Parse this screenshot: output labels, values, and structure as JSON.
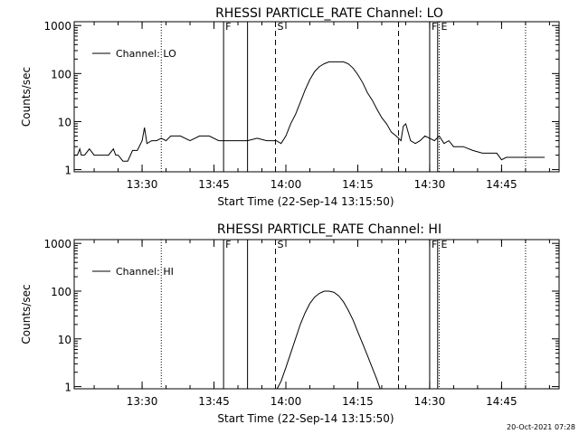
{
  "chart_data": [
    {
      "type": "line",
      "title": "RHESSI PARTICLE_RATE Channel: LO",
      "xlabel": "Start Time (22-Sep-14 13:15:50)",
      "ylabel": "Counts/sec",
      "yscale": "log",
      "ylim": [
        0.9,
        1200
      ],
      "xlim": [
        "13:15:50",
        "14:57:00"
      ],
      "xticks": [
        "13:30",
        "13:45",
        "14:00",
        "14:15",
        "14:30",
        "14:45"
      ],
      "yticks": [
        "1",
        "10",
        "100",
        "1000"
      ],
      "legend": "top-left",
      "series": [
        {
          "name": "Channel: LO",
          "x": [
            "13:15:50",
            "13:16:30",
            "13:17:00",
            "13:17:20",
            "13:18:00",
            "13:19:00",
            "13:20:00",
            "13:21:00",
            "13:22:00",
            "13:23:00",
            "13:24:00",
            "13:24:30",
            "13:25:00",
            "13:26:00",
            "13:27:00",
            "13:28:00",
            "13:29:00",
            "13:30:00",
            "13:30:30",
            "13:31:00",
            "13:32:00",
            "13:33:00",
            "13:34:00",
            "13:35:00",
            "13:36:00",
            "13:38:00",
            "13:40:00",
            "13:42:00",
            "13:44:00",
            "13:46:00",
            "13:48:00",
            "13:50:00",
            "13:52:00",
            "13:54:00",
            "13:56:00",
            "13:57:00",
            "13:58:00",
            "13:59:00",
            "14:00:00",
            "14:01:00",
            "14:02:00",
            "14:03:00",
            "14:04:00",
            "14:05:00",
            "14:06:00",
            "14:07:00",
            "14:08:00",
            "14:09:00",
            "14:10:00",
            "14:11:00",
            "14:12:00",
            "14:13:00",
            "14:14:00",
            "14:15:00",
            "14:16:00",
            "14:17:00",
            "14:18:00",
            "14:19:00",
            "14:20:00",
            "14:21:00",
            "14:22:00",
            "14:23:00",
            "14:24:00",
            "14:24:30",
            "14:25:00",
            "14:26:00",
            "14:27:00",
            "14:28:00",
            "14:29:00",
            "14:30:00",
            "14:31:00",
            "14:32:00",
            "14:33:00",
            "14:34:00",
            "14:35:00",
            "14:37:00",
            "14:39:00",
            "14:41:00",
            "14:43:00",
            "14:44:00",
            "14:45:00",
            "14:46:00",
            "14:48:00",
            "14:50:00",
            "14:52:00",
            "14:53:00",
            "14:54:00"
          ],
          "values": [
            2,
            2,
            2.7,
            2,
            2,
            2.7,
            2,
            2,
            2,
            2,
            2.7,
            2,
            2,
            1.5,
            1.5,
            2.5,
            2.5,
            4,
            7.5,
            3.5,
            4,
            4,
            4.5,
            4,
            5,
            5,
            4,
            5,
            5,
            4,
            4,
            4,
            4,
            4.5,
            4,
            4,
            4,
            3.5,
            5,
            9,
            14,
            25,
            45,
            75,
            110,
            140,
            160,
            175,
            175,
            175,
            175,
            160,
            130,
            95,
            65,
            40,
            28,
            18,
            12,
            9,
            6,
            5,
            4,
            8,
            9,
            4,
            3.5,
            4,
            5,
            4.5,
            4,
            5,
            3.5,
            4,
            3,
            3,
            2.5,
            2.2,
            2.2,
            2.2,
            1.6,
            1.8,
            1.8,
            1.8,
            1.8,
            1.8,
            1.8
          ]
        }
      ],
      "markers": [
        {
          "time": "13:34:00",
          "style": "dotted",
          "label": ""
        },
        {
          "time": "13:47:00",
          "style": "solid",
          "label": "F"
        },
        {
          "time": "13:52:00",
          "style": "solid",
          "label": ""
        },
        {
          "time": "13:57:50",
          "style": "dashed",
          "label": "S"
        },
        {
          "time": "14:23:30",
          "style": "dashed",
          "label": ""
        },
        {
          "time": "14:30:00",
          "style": "solid",
          "label": "F"
        },
        {
          "time": "14:31:40",
          "style": "solid",
          "label": ""
        },
        {
          "time": "14:32:00",
          "style": "dotted",
          "label": "E"
        },
        {
          "time": "14:50:00",
          "style": "dotted",
          "label": ""
        }
      ]
    },
    {
      "type": "line",
      "title": "RHESSI PARTICLE_RATE Channel: HI",
      "xlabel": "Start Time (22-Sep-14 13:15:50)",
      "ylabel": "Counts/sec",
      "yscale": "log",
      "ylim": [
        0.9,
        1200
      ],
      "xlim": [
        "13:15:50",
        "14:57:00"
      ],
      "xticks": [
        "13:30",
        "13:45",
        "14:00",
        "14:15",
        "14:30",
        "14:45"
      ],
      "yticks": [
        "1",
        "10",
        "100",
        "1000"
      ],
      "legend": "top-left",
      "series": [
        {
          "name": "Channel: HI",
          "x": [
            "13:58:10",
            "13:59:00",
            "14:00:00",
            "14:01:00",
            "14:02:00",
            "14:03:00",
            "14:04:00",
            "14:05:00",
            "14:06:00",
            "14:07:00",
            "14:08:00",
            "14:09:00",
            "14:10:00",
            "14:11:00",
            "14:12:00",
            "14:13:00",
            "14:14:00",
            "14:15:00",
            "14:16:00",
            "14:17:00",
            "14:18:00",
            "14:19:00",
            "14:19:40"
          ],
          "values": [
            0.9,
            1.3,
            2.5,
            5,
            10,
            20,
            35,
            55,
            75,
            90,
            100,
            100,
            95,
            80,
            60,
            40,
            25,
            14,
            8,
            4.5,
            2.5,
            1.4,
            0.9
          ]
        }
      ],
      "markers": [
        {
          "time": "13:34:00",
          "style": "dotted",
          "label": ""
        },
        {
          "time": "13:47:00",
          "style": "solid",
          "label": "F"
        },
        {
          "time": "13:52:00",
          "style": "solid",
          "label": ""
        },
        {
          "time": "13:57:50",
          "style": "dashed",
          "label": "S"
        },
        {
          "time": "14:23:30",
          "style": "dashed",
          "label": ""
        },
        {
          "time": "14:30:00",
          "style": "solid",
          "label": "F"
        },
        {
          "time": "14:31:40",
          "style": "solid",
          "label": ""
        },
        {
          "time": "14:32:00",
          "style": "dotted",
          "label": "E"
        },
        {
          "time": "14:50:00",
          "style": "dotted",
          "label": ""
        }
      ]
    }
  ],
  "timestamp": "20-Oct-2021 07:28"
}
